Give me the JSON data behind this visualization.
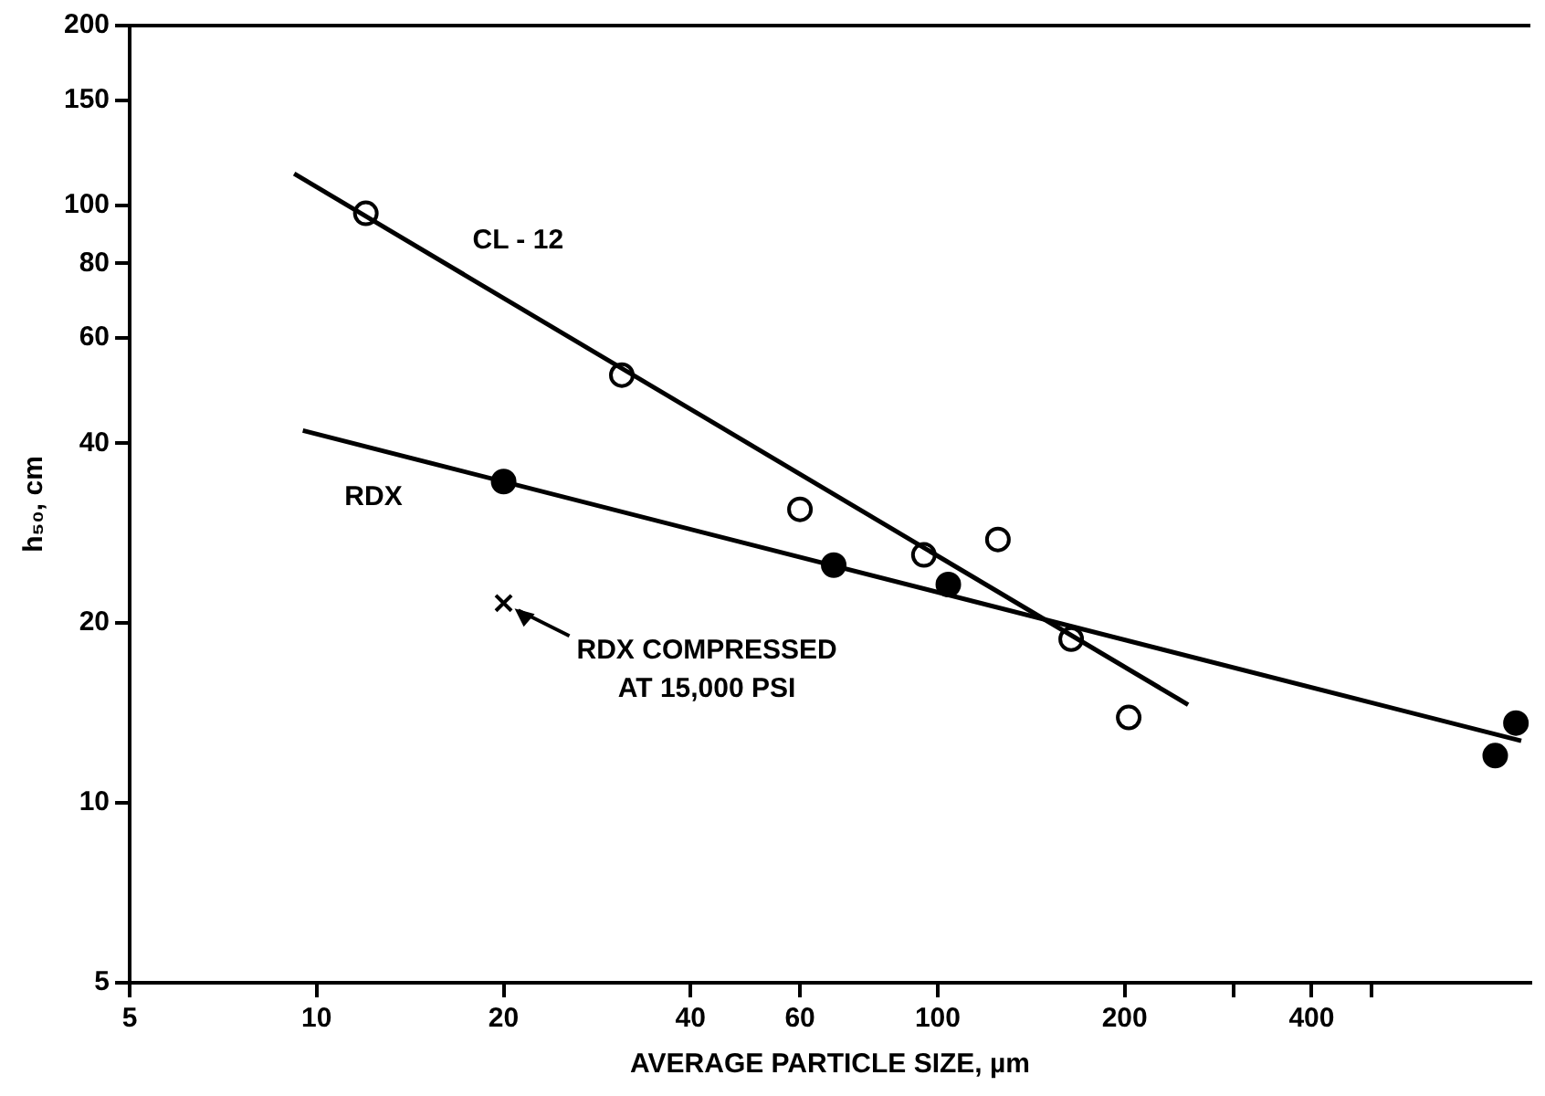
{
  "chart_data": {
    "type": "scatter",
    "xlabel": "AVERAGE PARTICLE SIZE, µm",
    "ylabel": "h₅₀, cm",
    "log": "xy",
    "grid": false,
    "legend": false,
    "xlim": [
      5,
      900
    ],
    "xticks": [
      5,
      10,
      20,
      40,
      60,
      100,
      200,
      {
        "value": 300,
        "label": null
      },
      400,
      {
        "value": 500,
        "label": null
      }
    ],
    "ylim": [
      5,
      200
    ],
    "yticks": [
      5,
      10,
      20,
      40,
      60,
      80,
      100,
      150,
      200
    ],
    "series": [
      {
        "type": "line",
        "name": "CL - 12",
        "color": "#000000",
        "marker": "none",
        "x": [
          9.2,
          253
        ],
        "values": [
          113,
          14.6
        ]
      },
      {
        "type": "line",
        "name": "RDX",
        "color": "#000000",
        "marker": "none",
        "x": [
          9.5,
          870
        ],
        "values": [
          42,
          12.7
        ]
      },
      {
        "color": "#ffffff",
        "marker": "circle",
        "x": [
          12,
          31,
          60,
          95,
          125,
          164,
          203
        ],
        "values": [
          97,
          52,
          31,
          26,
          27.6,
          18.8,
          13.9
        ]
      },
      {
        "color": "#000000",
        "marker": "circle",
        "x": [
          20,
          68,
          104,
          790,
          853
        ],
        "values": [
          34.5,
          25,
          23.2,
          12,
          13.6
        ]
      },
      {
        "color": "#000000",
        "marker": "cross",
        "x": [
          20
        ],
        "values": [
          21.6
        ]
      }
    ],
    "annotations": [
      {
        "text": "RDX COMPRESSED\nAT 15,000 PSI",
        "x": 20,
        "y": 21.6
      }
    ]
  }
}
